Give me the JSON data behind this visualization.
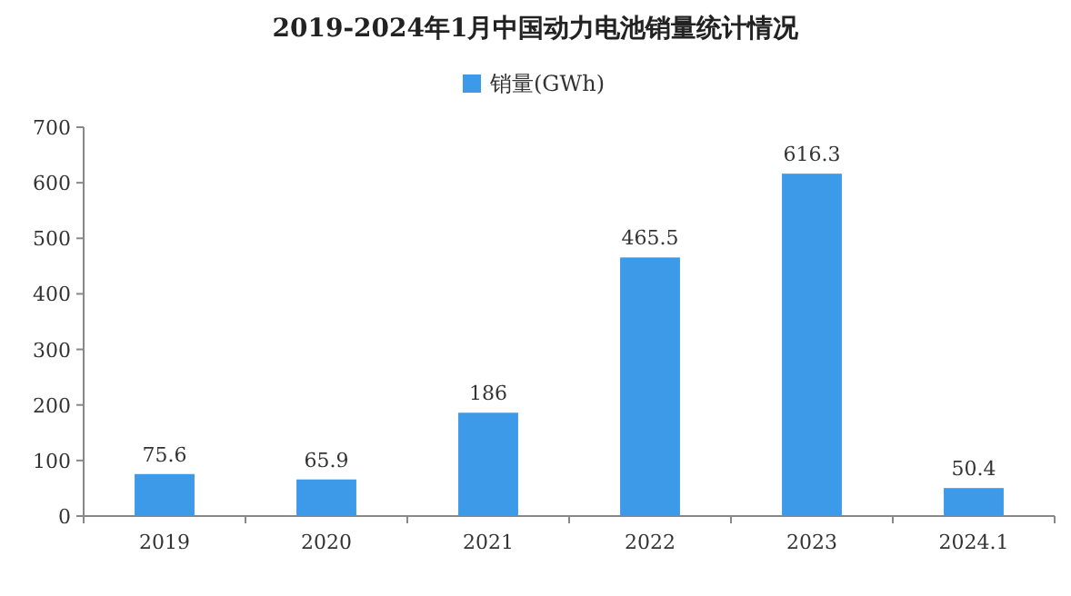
{
  "chart_data": {
    "type": "bar",
    "title": "2019-2024年1月中国动力电池销量统计情况",
    "categories": [
      "2019",
      "2020",
      "2021",
      "2022",
      "2023",
      "2024.1"
    ],
    "series": [
      {
        "name": "销量(GWh)",
        "color": "#3d9ae8",
        "values": [
          75.6,
          65.9,
          186,
          465.5,
          616.3,
          50.4
        ]
      }
    ],
    "ylim": [
      0,
      700
    ],
    "yticks": [
      0,
      100,
      200,
      300,
      400,
      500,
      600,
      700
    ],
    "legend": "top",
    "data_labels": true
  }
}
